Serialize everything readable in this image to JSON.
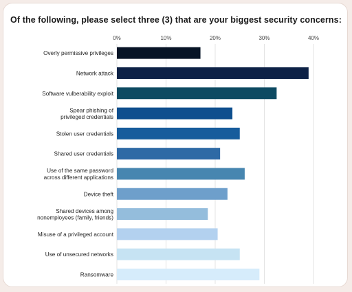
{
  "chart_data": {
    "type": "bar",
    "orientation": "horizontal",
    "title": "Of the following, please select three (3) that are your biggest security concerns:",
    "xlabel": "",
    "ylabel": "",
    "xlim": [
      0,
      40
    ],
    "ticks": [
      "0%",
      "10%",
      "20%",
      "30%",
      "40%"
    ],
    "tick_values": [
      0,
      10,
      20,
      30,
      40
    ],
    "grid": true,
    "categories": [
      [
        "Overly permissive privileges"
      ],
      [
        "Network attack"
      ],
      [
        "Software vulberability exploit"
      ],
      [
        "Spear phishing of",
        "privileged credentials"
      ],
      [
        "Stolen user credentials"
      ],
      [
        "Shared user credentials"
      ],
      [
        "Use of the same password",
        "across different applications"
      ],
      [
        "Device theft"
      ],
      [
        "Shared devices among",
        "nonemployees (family, friends)"
      ],
      [
        "Misuse of a privileged account"
      ],
      [
        "Use of unsecured networks"
      ],
      [
        "Ransomware"
      ]
    ],
    "values": [
      17,
      39,
      32.5,
      23.5,
      25,
      21,
      26,
      22.5,
      18.5,
      20.5,
      25,
      29
    ],
    "colors": [
      "#071426",
      "#0d2146",
      "#0d4a62",
      "#0f4f8e",
      "#175c9c",
      "#2e6aa5",
      "#4786b0",
      "#6e9fcb",
      "#94bddc",
      "#b3d1ef",
      "#c6e3f3",
      "#d6ecfb"
    ]
  }
}
